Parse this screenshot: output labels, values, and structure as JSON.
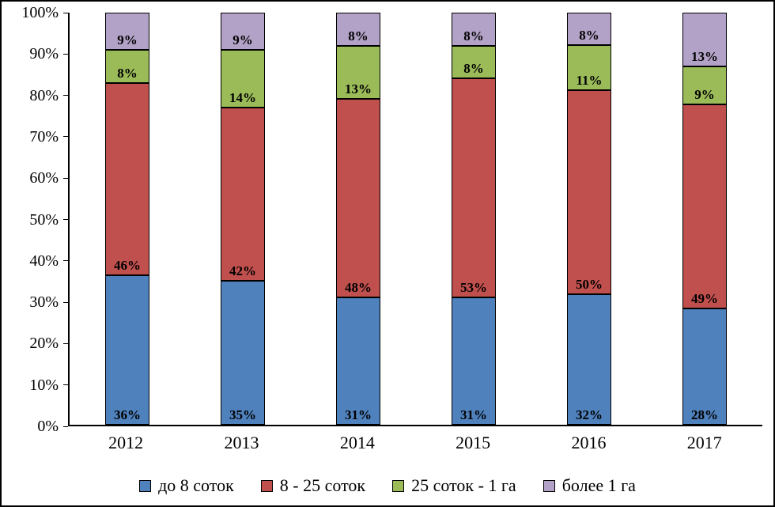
{
  "chart_data": {
    "type": "bar",
    "stacked": true,
    "percent": true,
    "title": "",
    "xlabel": "",
    "ylabel": "",
    "categories": [
      "2012",
      "2013",
      "2014",
      "2015",
      "2016",
      "2017"
    ],
    "series": [
      {
        "name": "до 8 соток",
        "color": "#4F81BD",
        "values": [
          36,
          35,
          31,
          31,
          32,
          28
        ]
      },
      {
        "name": "8 - 25 соток",
        "color": "#C0504D",
        "values": [
          46,
          42,
          48,
          53,
          50,
          49
        ]
      },
      {
        "name": "25 соток - 1 га",
        "color": "#9BBB59",
        "values": [
          8,
          14,
          13,
          8,
          11,
          9
        ]
      },
      {
        "name": "более 1 га",
        "color": "#B3A2C7",
        "values": [
          9,
          9,
          8,
          8,
          8,
          13
        ]
      }
    ],
    "yticks": [
      "0%",
      "10%",
      "20%",
      "30%",
      "40%",
      "50%",
      "60%",
      "70%",
      "80%",
      "90%",
      "100%"
    ],
    "ylim": [
      0,
      100
    ],
    "data_label_format": "{value}%",
    "data_label_position": "inside-base",
    "legend_position": "bottom",
    "grid": false
  }
}
